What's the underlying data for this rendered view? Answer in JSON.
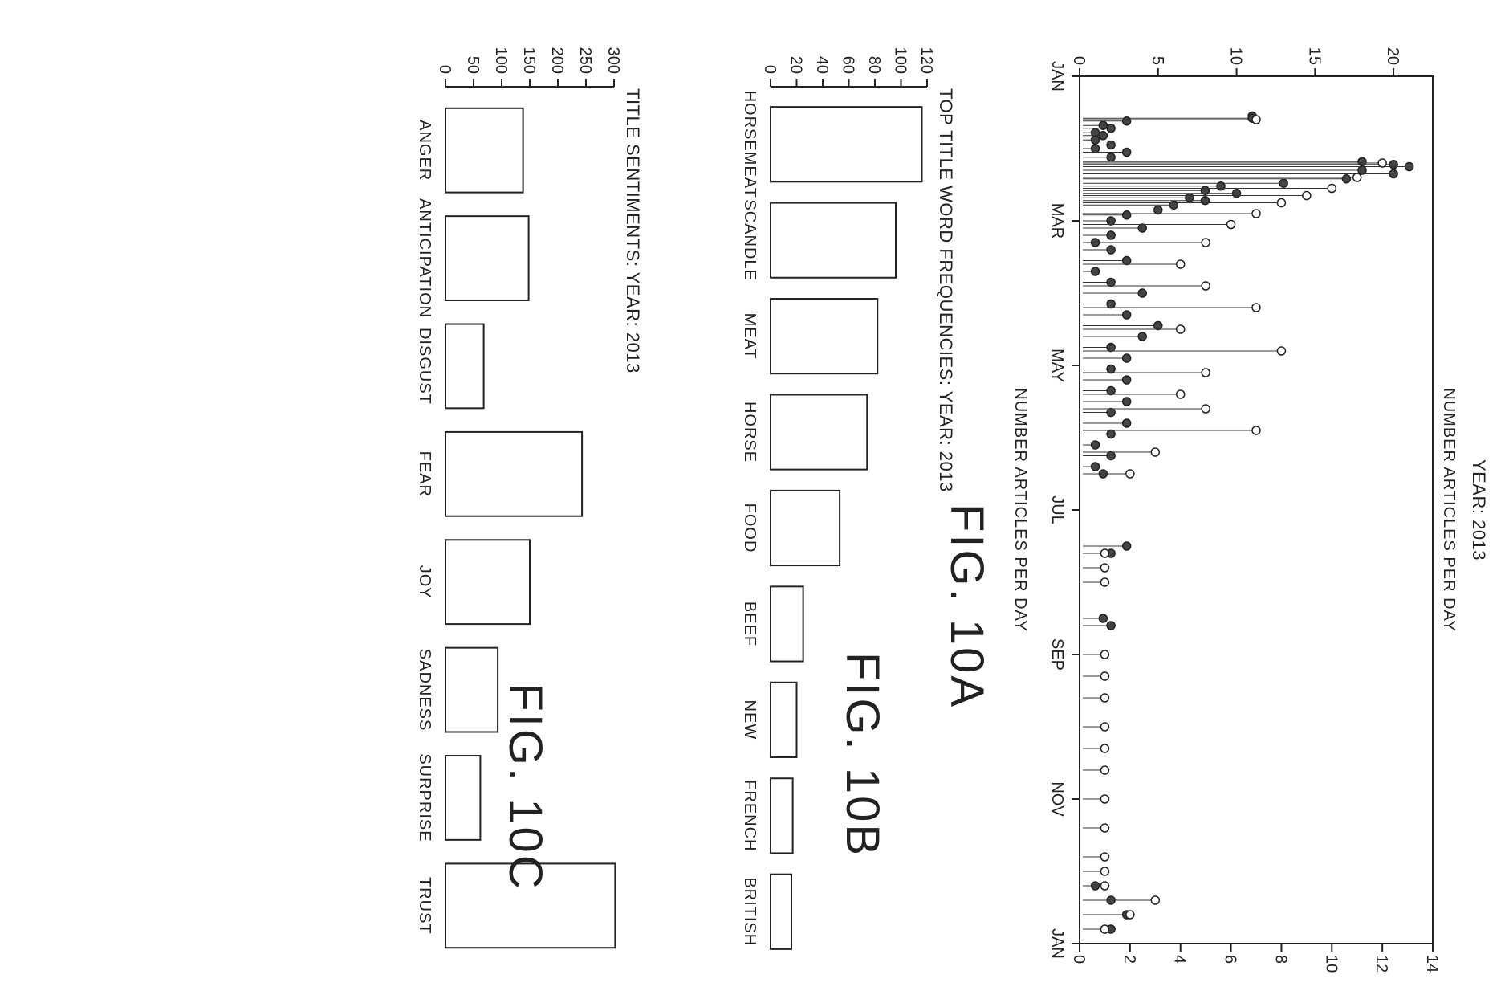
{
  "figures": {
    "a": {
      "caption": "FIG. 10A"
    },
    "b": {
      "caption": "FIG. 10B"
    },
    "c": {
      "caption": "FIG. 10C"
    }
  },
  "chart_data": [
    {
      "id": "fig10a",
      "type": "scatter",
      "title": "YEAR: 2013",
      "xlabel": "",
      "ylabel_left": "NUMBER ARTICLES PER DAY",
      "ylabel_right": "NUMBER ARTICLES PER DAY",
      "xticks": [
        "JAN",
        "MAR",
        "MAY",
        "JUL",
        "SEP",
        "NOV",
        "JAN"
      ],
      "xlim": [
        0,
        12
      ],
      "ylim_left": [
        0,
        22.5
      ],
      "yticks_left": [
        0,
        5,
        10,
        15,
        20
      ],
      "ylim_right": [
        0,
        14
      ],
      "yticks_right": [
        0,
        2,
        4,
        6,
        8,
        10,
        12,
        14
      ],
      "grid": false,
      "series": [
        {
          "marker": "filled",
          "axis": "left",
          "points": [
            [
              0.55,
              11
            ],
            [
              0.58,
              11
            ],
            [
              0.62,
              3
            ],
            [
              0.68,
              1.5
            ],
            [
              0.72,
              2
            ],
            [
              0.78,
              1
            ],
            [
              0.82,
              1.5
            ],
            [
              0.88,
              1
            ],
            [
              0.95,
              2
            ],
            [
              1.0,
              1
            ],
            [
              1.05,
              3
            ],
            [
              1.12,
              2
            ],
            [
              1.18,
              18
            ],
            [
              1.22,
              20
            ],
            [
              1.25,
              21
            ],
            [
              1.3,
              18
            ],
            [
              1.35,
              20
            ],
            [
              1.42,
              17
            ],
            [
              1.48,
              13
            ],
            [
              1.52,
              9
            ],
            [
              1.58,
              8
            ],
            [
              1.62,
              10
            ],
            [
              1.68,
              7
            ],
            [
              1.72,
              8
            ],
            [
              1.78,
              6
            ],
            [
              1.85,
              5
            ],
            [
              1.92,
              3
            ],
            [
              2.0,
              2
            ],
            [
              2.1,
              4
            ],
            [
              2.2,
              2
            ],
            [
              2.3,
              1
            ],
            [
              2.4,
              2
            ],
            [
              2.55,
              3
            ],
            [
              2.7,
              1
            ],
            [
              2.85,
              2
            ],
            [
              3.0,
              4
            ],
            [
              3.15,
              2
            ],
            [
              3.3,
              3
            ],
            [
              3.45,
              5
            ],
            [
              3.6,
              4
            ],
            [
              3.75,
              2
            ],
            [
              3.9,
              3
            ],
            [
              4.05,
              2
            ],
            [
              4.2,
              3
            ],
            [
              4.35,
              2
            ],
            [
              4.5,
              3
            ],
            [
              4.65,
              2
            ],
            [
              4.8,
              3
            ],
            [
              4.95,
              2
            ],
            [
              5.1,
              1
            ],
            [
              5.25,
              2
            ],
            [
              5.4,
              1
            ],
            [
              5.5,
              1.5
            ],
            [
              6.5,
              3
            ],
            [
              6.6,
              2
            ],
            [
              7.5,
              1.5
            ],
            [
              7.6,
              2
            ],
            [
              11.2,
              1
            ],
            [
              11.4,
              2
            ],
            [
              11.6,
              3
            ],
            [
              11.8,
              2
            ]
          ]
        },
        {
          "marker": "open",
          "axis": "right",
          "points": [
            [
              0.6,
              7
            ],
            [
              1.2,
              12
            ],
            [
              1.4,
              11
            ],
            [
              1.55,
              10
            ],
            [
              1.65,
              9
            ],
            [
              1.75,
              8
            ],
            [
              1.9,
              7
            ],
            [
              2.05,
              6
            ],
            [
              2.3,
              5
            ],
            [
              2.6,
              4
            ],
            [
              2.9,
              5
            ],
            [
              3.2,
              7
            ],
            [
              3.5,
              4
            ],
            [
              3.8,
              8
            ],
            [
              4.1,
              5
            ],
            [
              4.4,
              4
            ],
            [
              4.6,
              5
            ],
            [
              4.9,
              7
            ],
            [
              5.2,
              3
            ],
            [
              5.5,
              2
            ],
            [
              6.6,
              1
            ],
            [
              6.8,
              1
            ],
            [
              7.0,
              1
            ],
            [
              8.0,
              1
            ],
            [
              8.3,
              1
            ],
            [
              8.6,
              1
            ],
            [
              9.0,
              1
            ],
            [
              9.3,
              1
            ],
            [
              9.6,
              1
            ],
            [
              10.0,
              1
            ],
            [
              10.4,
              1
            ],
            [
              10.8,
              1
            ],
            [
              11.0,
              1
            ],
            [
              11.2,
              1
            ],
            [
              11.4,
              3
            ],
            [
              11.6,
              2
            ],
            [
              11.8,
              1
            ]
          ]
        }
      ]
    },
    {
      "id": "fig10b",
      "type": "bar",
      "title": "TOP TITLE WORD FREQUENCIES: YEAR: 2013",
      "categories": [
        "HORSEMEAT",
        "SCANDLE",
        "MEAT",
        "HORSE",
        "FOOD",
        "BEEF",
        "NEW",
        "FRENCH",
        "BRITISH"
      ],
      "values": [
        116,
        96,
        82,
        74,
        53,
        25,
        20,
        17,
        16
      ],
      "ylim": [
        0,
        120
      ],
      "yticks": [
        0,
        20,
        40,
        60,
        80,
        100,
        120
      ],
      "xlabel": "",
      "ylabel": "",
      "grid": false
    },
    {
      "id": "fig10c",
      "type": "bar",
      "title": "TITLE SENTIMENTS: YEAR: 2013",
      "categories": [
        "ANGER",
        "ANTICIPATION",
        "DISGUST",
        "FEAR",
        "JOY",
        "SADNESS",
        "SURPRISE",
        "TRUST"
      ],
      "values": [
        138,
        148,
        68,
        243,
        150,
        93,
        62,
        302
      ],
      "ylim": [
        0,
        300
      ],
      "yticks": [
        0,
        50,
        100,
        150,
        200,
        250,
        300
      ],
      "xlabel": "",
      "ylabel": "",
      "grid": false
    }
  ]
}
